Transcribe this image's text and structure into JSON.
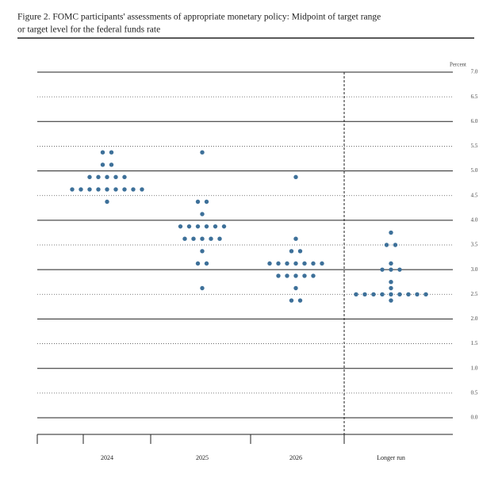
{
  "chart_data": {
    "type": "dot",
    "title_lines": [
      "Figure 2.  FOMC participants' assessments of appropriate monetary policy:  Midpoint of target range",
      "or target level for the federal funds rate"
    ],
    "y_label": "Percent",
    "categories": [
      "2024",
      "2025",
      "2026",
      "Longer run"
    ],
    "values": [
      [
        5.375,
        5.375,
        5.125,
        5.125,
        4.875,
        4.875,
        4.875,
        4.875,
        4.875,
        4.625,
        4.625,
        4.625,
        4.625,
        4.625,
        4.625,
        4.625,
        4.625,
        4.625,
        4.375
      ],
      [
        5.375,
        4.375,
        4.375,
        4.125,
        3.875,
        3.875,
        3.875,
        3.875,
        3.875,
        3.875,
        3.625,
        3.625,
        3.625,
        3.625,
        3.625,
        3.375,
        3.125,
        3.125,
        2.625
      ],
      [
        4.875,
        3.625,
        3.375,
        3.375,
        3.125,
        3.125,
        3.125,
        3.125,
        3.125,
        3.125,
        3.125,
        2.875,
        2.875,
        2.875,
        2.875,
        2.875,
        2.625,
        2.375,
        2.375
      ],
      [
        3.75,
        3.5,
        3.5,
        3.125,
        3,
        3,
        3,
        2.75,
        2.625,
        2.5,
        2.5,
        2.5,
        2.5,
        2.5,
        2.5,
        2.5,
        2.5,
        2.5,
        2.375
      ]
    ],
    "color": "#3d7099",
    "ylim": [
      0,
      7
    ],
    "yticks": [
      {
        "value": 0,
        "label": "0.0"
      },
      {
        "value": 0.5,
        "label": "0.5"
      },
      {
        "value": 1,
        "label": "1.0"
      },
      {
        "value": 1.5,
        "label": "1.5"
      },
      {
        "value": 2,
        "label": "2.0"
      },
      {
        "value": 2.5,
        "label": "2.5"
      },
      {
        "value": 3,
        "label": "3.0"
      },
      {
        "value": 3.5,
        "label": "3.5"
      },
      {
        "value": 4,
        "label": "4.0"
      },
      {
        "value": 4.5,
        "label": "4.5"
      },
      {
        "value": 5,
        "label": "5.0"
      },
      {
        "value": 5.5,
        "label": "5.5"
      },
      {
        "value": 6,
        "label": "6.0"
      },
      {
        "value": 6.5,
        "label": "6.5"
      },
      {
        "value": 7,
        "label": "7.0"
      }
    ],
    "grid": true
  }
}
